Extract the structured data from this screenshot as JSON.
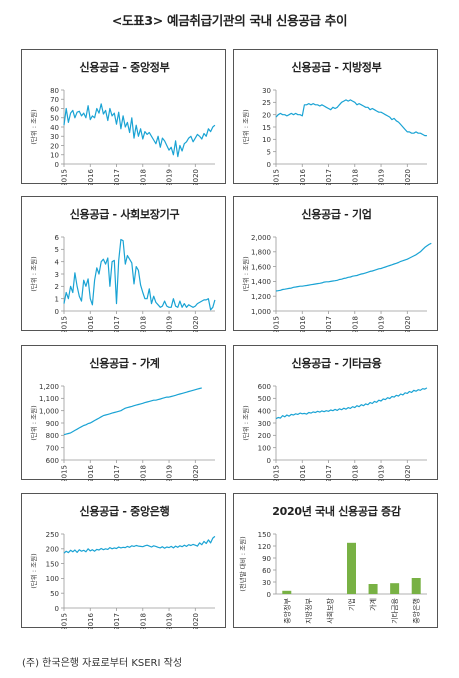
{
  "title": "<도표3> 예금취급기관의 국내 신용공급 추이",
  "footnote": "(주) 한국은행 자료로부터 KSERI 작성",
  "colors": {
    "line": "#1aa3d4",
    "bar": "#78b144",
    "axis": "#999999"
  },
  "chart_data": [
    {
      "type": "line",
      "title": "신용공급 - 중앙정부",
      "ylabel": "(단위 : 조원)",
      "ylim": [
        0,
        80
      ],
      "yticks": [
        0,
        10,
        20,
        30,
        40,
        50,
        60,
        70,
        80
      ],
      "xlim": [
        2015,
        2020.75
      ],
      "xticks": [
        2015,
        2016,
        2017,
        2018,
        2019,
        2020
      ],
      "series": [
        {
          "x_start": 2015,
          "step": 0.0833,
          "values": [
            42,
            60,
            45,
            55,
            58,
            50,
            56,
            57,
            52,
            55,
            50,
            63,
            48,
            52,
            50,
            60,
            55,
            65,
            54,
            58,
            47,
            60,
            52,
            55,
            43,
            56,
            38,
            52,
            40,
            45,
            34,
            50,
            28,
            42,
            30,
            38,
            27,
            35,
            32,
            34,
            30,
            26,
            22,
            30,
            18,
            28,
            25,
            20,
            15,
            18,
            10,
            25,
            8,
            20,
            14,
            22,
            24,
            28,
            30,
            24,
            28,
            32,
            30,
            27,
            33,
            30,
            38,
            35,
            40,
            42
          ]
        }
      ]
    },
    {
      "type": "line",
      "title": "신용공급 - 지방정부",
      "ylabel": "(단위 : 조원)",
      "ylim": [
        0,
        30
      ],
      "yticks": [
        0,
        5,
        10,
        15,
        20,
        25,
        30
      ],
      "xlim": [
        2015,
        2020.75
      ],
      "xticks": [
        2015,
        2016,
        2017,
        2018,
        2019,
        2020
      ],
      "series": [
        {
          "x_start": 2015,
          "step": 0.0833,
          "values": [
            19,
            20,
            20.5,
            20,
            20,
            19.5,
            20,
            20.5,
            20,
            20.5,
            20,
            20,
            19.5,
            24,
            24,
            24.5,
            24,
            24.5,
            24,
            24,
            23.5,
            24,
            23.5,
            23,
            22.5,
            22,
            23,
            22.5,
            23,
            24,
            25,
            25.5,
            26,
            25.5,
            26,
            25.5,
            25,
            24,
            24.5,
            24,
            23.5,
            23,
            23,
            22,
            22.5,
            22,
            21.5,
            21,
            21,
            20.5,
            20,
            19.5,
            19,
            18,
            18.5,
            17.5,
            17,
            16,
            15,
            14,
            13,
            13,
            12.5,
            12.5,
            13,
            12.5,
            12.5,
            12,
            11.5,
            11.5
          ]
        }
      ]
    },
    {
      "type": "line",
      "title": "신용공급 - 사회보장기구",
      "ylabel": "(단위 : 조원)",
      "ylim": [
        0,
        6
      ],
      "yticks": [
        0,
        1,
        2,
        3,
        4,
        5,
        6
      ],
      "xlim": [
        2015,
        2020.75
      ],
      "xticks": [
        2015,
        2016,
        2017,
        2018,
        2019,
        2020
      ],
      "series": [
        {
          "x_start": 2015,
          "step": 0.0833,
          "values": [
            0.6,
            1.5,
            1.0,
            2.0,
            1.5,
            3.1,
            2.0,
            1.2,
            0.8,
            2.5,
            2.0,
            2.6,
            1.0,
            0.5,
            2.5,
            3.5,
            3.0,
            4.0,
            4.2,
            3.8,
            4.3,
            2.0,
            4.0,
            4.1,
            0.6,
            4.1,
            5.8,
            5.7,
            3.8,
            4.5,
            4.2,
            3.9,
            2.2,
            3.6,
            3.3,
            2.1,
            1.5,
            1.0,
            1.0,
            1.8,
            0.6,
            1.2,
            0.7,
            0.5,
            0.3,
            0.4,
            0.8,
            0.4,
            0.3,
            0.3,
            1.0,
            0.4,
            0.3,
            0.8,
            0.3,
            0.6,
            0.3,
            0.5,
            0.4,
            0.3,
            0.4,
            0.6,
            0.7,
            0.8,
            0.9,
            0.9,
            1.0,
            0.1,
            0.3,
            0.9
          ]
        }
      ]
    },
    {
      "type": "line",
      "title": "신용공급 - 기업",
      "ylabel": "(단위 : 조원)",
      "ylim": [
        1000,
        2000
      ],
      "yticks": [
        1000,
        1200,
        1400,
        1600,
        1800,
        2000
      ],
      "yticklabels": [
        "1,000",
        "1,200",
        "1,400",
        "1,600",
        "1,800",
        "2,000"
      ],
      "xlim": [
        2015,
        2020.75
      ],
      "xticks": [
        2015,
        2016,
        2017,
        2018,
        2019,
        2020
      ],
      "series": [
        {
          "x_start": 2015,
          "step": 0.0833,
          "values": [
            1270,
            1275,
            1280,
            1290,
            1295,
            1300,
            1305,
            1310,
            1320,
            1325,
            1330,
            1335,
            1335,
            1340,
            1345,
            1350,
            1355,
            1360,
            1365,
            1370,
            1375,
            1380,
            1390,
            1395,
            1395,
            1400,
            1405,
            1410,
            1415,
            1425,
            1430,
            1440,
            1445,
            1455,
            1460,
            1470,
            1475,
            1480,
            1490,
            1500,
            1505,
            1515,
            1525,
            1535,
            1540,
            1550,
            1560,
            1570,
            1575,
            1585,
            1595,
            1605,
            1615,
            1625,
            1635,
            1645,
            1655,
            1670,
            1680,
            1690,
            1700,
            1715,
            1730,
            1745,
            1760,
            1780,
            1800,
            1830,
            1860,
            1880,
            1900,
            1915
          ]
        }
      ]
    },
    {
      "type": "line",
      "title": "신용공급 - 가계",
      "ylabel": "(단위 : 조원)",
      "ylim": [
        600,
        1200
      ],
      "yticks": [
        600,
        700,
        800,
        900,
        1000,
        1100,
        1200
      ],
      "yticklabels": [
        "600",
        "700",
        "800",
        "900",
        "1,000",
        "1,100",
        "1,200"
      ],
      "xlim": [
        2015,
        2020.75
      ],
      "xticks": [
        2015,
        2016,
        2017,
        2018,
        2019,
        2020
      ],
      "series": [
        {
          "x_start": 2015,
          "step": 0.0833,
          "values": [
            805,
            810,
            815,
            820,
            830,
            840,
            850,
            860,
            870,
            880,
            885,
            895,
            900,
            910,
            920,
            930,
            940,
            950,
            960,
            965,
            970,
            975,
            980,
            985,
            990,
            995,
            1000,
            1010,
            1020,
            1025,
            1030,
            1035,
            1040,
            1045,
            1050,
            1055,
            1060,
            1065,
            1070,
            1075,
            1080,
            1085,
            1085,
            1090,
            1095,
            1100,
            1105,
            1110,
            1110,
            1115,
            1120,
            1125,
            1130,
            1135,
            1140,
            1145,
            1150,
            1155,
            1160,
            1165,
            1170,
            1175,
            1180,
            1185
          ]
        }
      ]
    },
    {
      "type": "line",
      "title": "신용공급 - 기타금융",
      "ylabel": "(단위 : 조원)",
      "ylim": [
        0,
        600
      ],
      "yticks": [
        0,
        100,
        200,
        300,
        400,
        500,
        600
      ],
      "xlim": [
        2015,
        2020.75
      ],
      "xticks": [
        2015,
        2016,
        2017,
        2018,
        2019,
        2020
      ],
      "series": [
        {
          "x_start": 2015,
          "step": 0.0833,
          "values": [
            335,
            345,
            340,
            360,
            350,
            365,
            355,
            370,
            365,
            375,
            370,
            380,
            375,
            378,
            372,
            385,
            380,
            390,
            385,
            395,
            388,
            398,
            392,
            400,
            395,
            405,
            400,
            410,
            402,
            415,
            408,
            420,
            412,
            425,
            418,
            432,
            425,
            440,
            432,
            448,
            440,
            455,
            448,
            465,
            458,
            475,
            468,
            485,
            478,
            495,
            490,
            505,
            498,
            515,
            510,
            525,
            518,
            535,
            528,
            545,
            540,
            555,
            548,
            565,
            558,
            570,
            565,
            578,
            575,
            585
          ]
        }
      ]
    },
    {
      "type": "line",
      "title": "신용공급 - 중앙은행",
      "ylabel": "(단위 : 조원)",
      "ylim": [
        0,
        250
      ],
      "yticks": [
        0,
        50,
        100,
        150,
        200,
        250
      ],
      "xlim": [
        2015,
        2020.75
      ],
      "xticks": [
        2015,
        2016,
        2017,
        2018,
        2019,
        2020
      ],
      "series": [
        {
          "x_start": 2015,
          "step": 0.0833,
          "values": [
            185,
            192,
            187,
            195,
            190,
            196,
            188,
            197,
            192,
            195,
            190,
            200,
            193,
            197,
            192,
            198,
            196,
            201,
            197,
            200,
            198,
            204,
            200,
            203,
            201,
            206,
            203,
            205,
            204,
            208,
            205,
            210,
            208,
            211,
            209,
            208,
            207,
            210,
            212,
            209,
            206,
            210,
            208,
            205,
            203,
            207,
            202,
            206,
            204,
            208,
            203,
            209,
            205,
            210,
            207,
            212,
            208,
            214,
            211,
            215,
            212,
            209,
            220,
            214,
            225,
            218,
            230,
            220,
            236,
            242
          ]
        }
      ]
    },
    {
      "type": "bar",
      "title": "2020년 국내 신용공급 증감",
      "ylabel": "(전년말 대비 : 조원)",
      "ylim": [
        0,
        150
      ],
      "yticks": [
        0,
        30,
        60,
        90,
        120,
        150
      ],
      "categories": [
        "중앙정부",
        "지방정부",
        "사회보장",
        "기업",
        "가계",
        "기타금융",
        "중앙은행"
      ],
      "values": [
        8,
        0,
        0,
        128,
        25,
        27,
        40
      ]
    }
  ]
}
